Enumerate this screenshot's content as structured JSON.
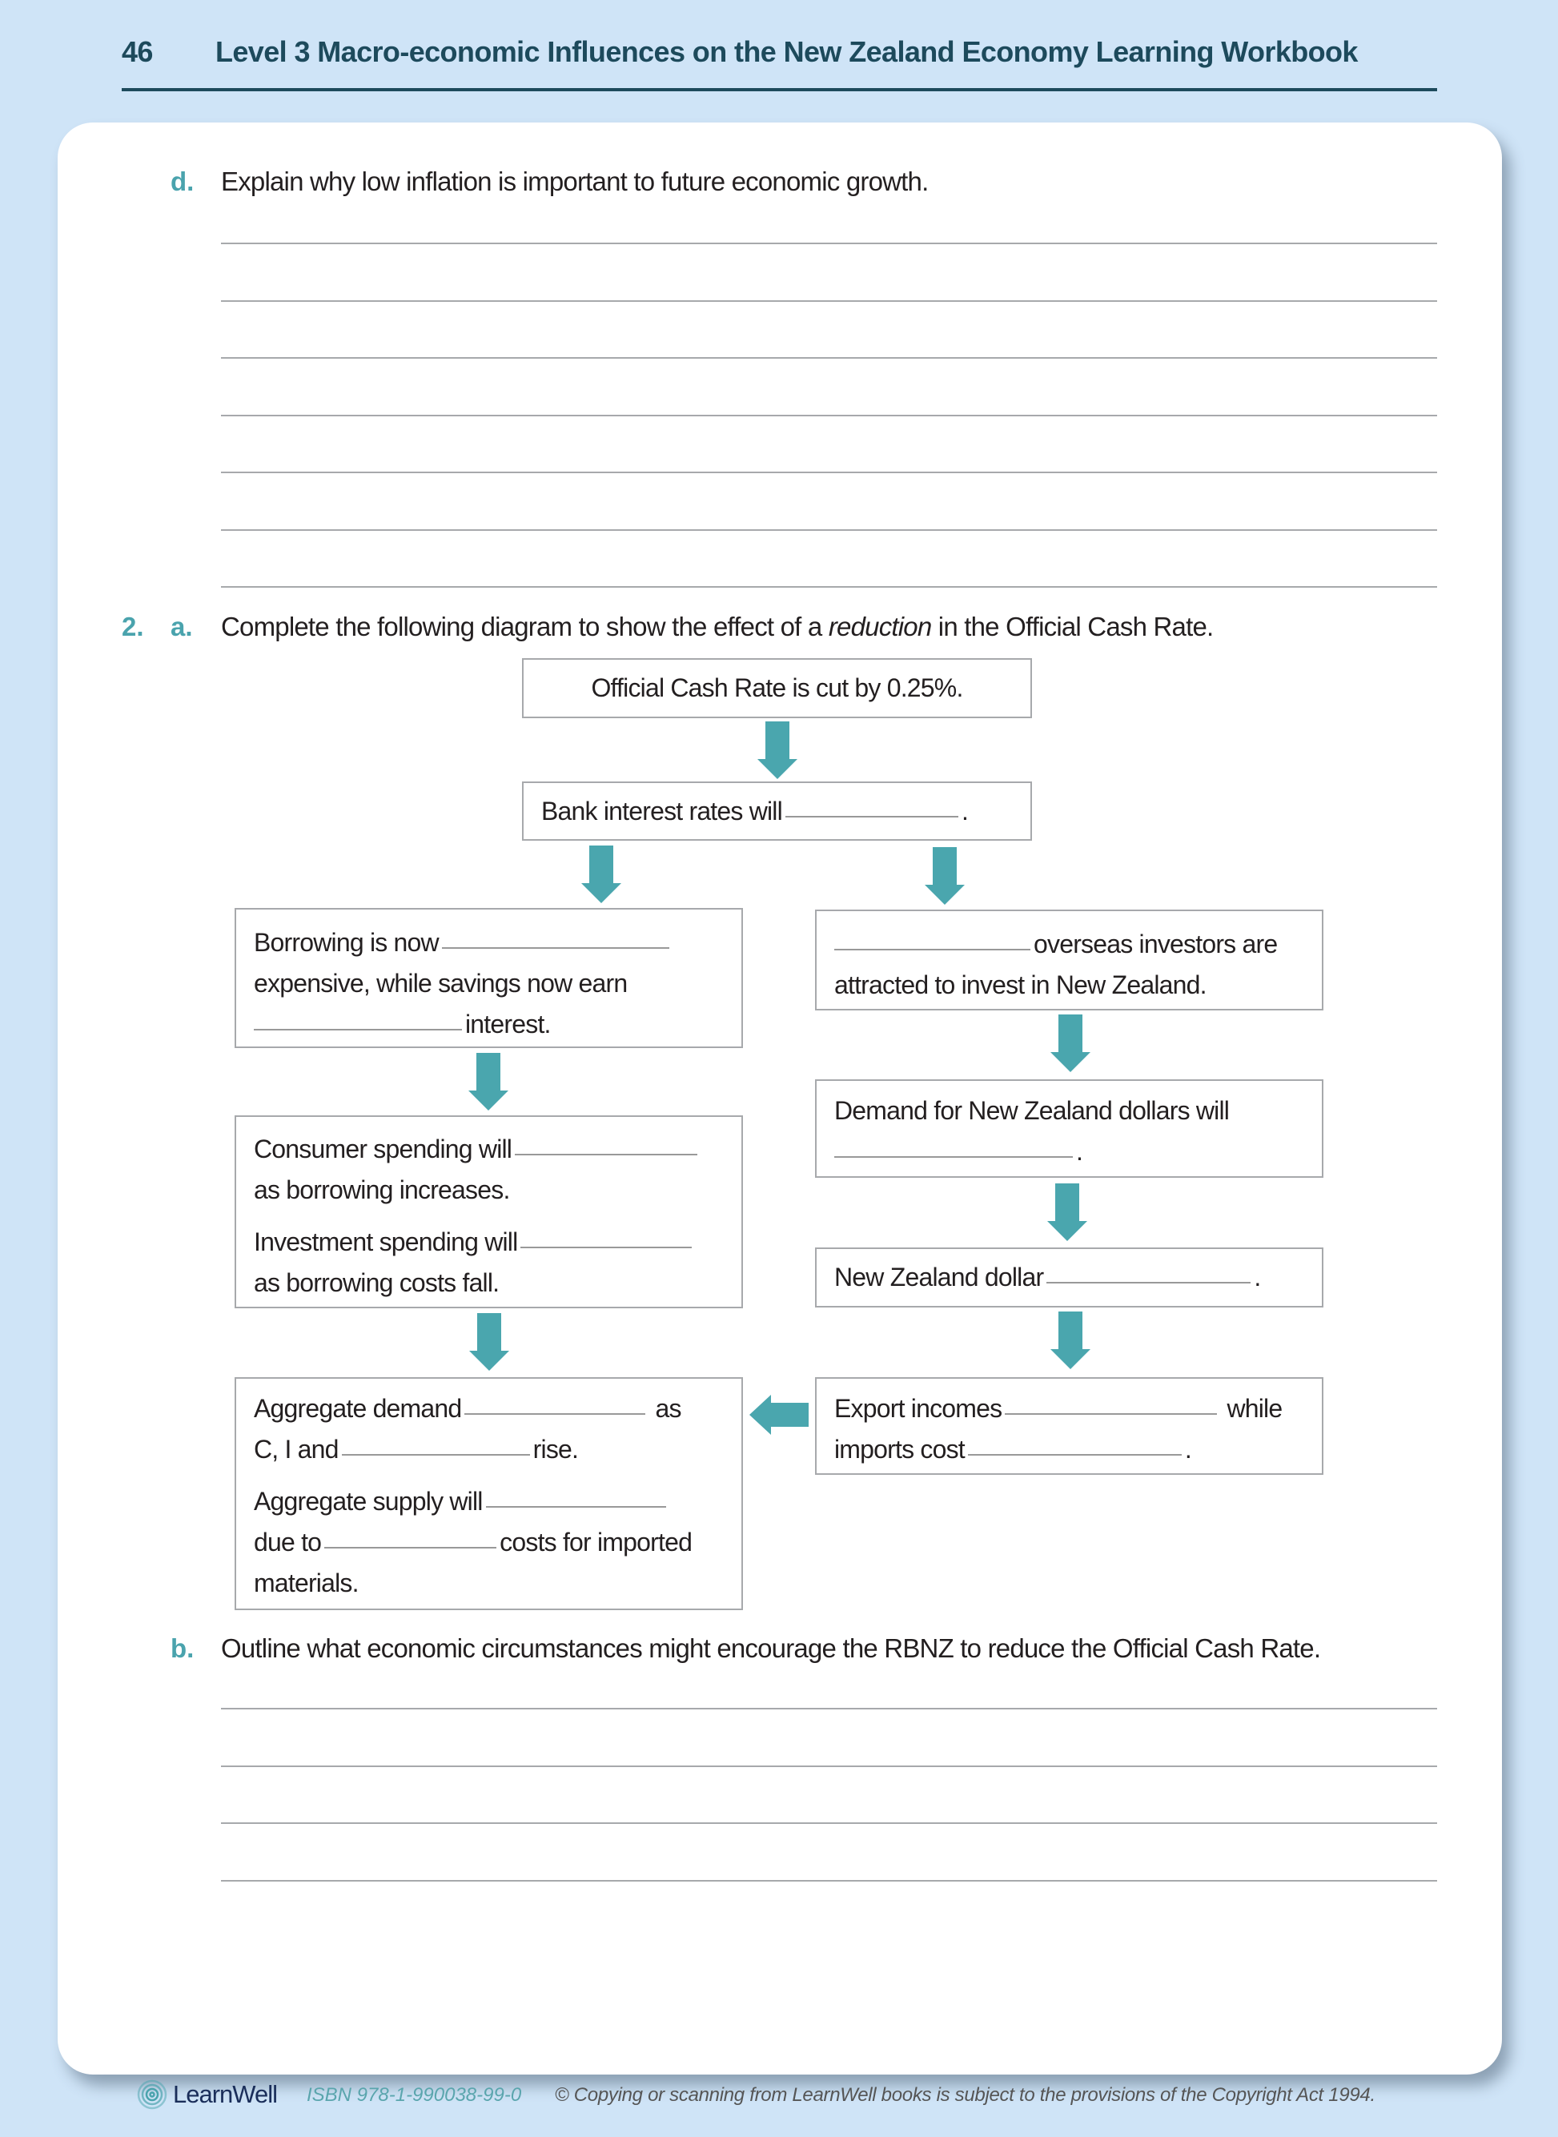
{
  "header": {
    "page_number": "46",
    "book_title": "Level 3 Macro-economic Influences on the New Zealand Economy Learning Workbook"
  },
  "question_1d": {
    "label": "d.",
    "text": "Explain why low inflation is important to future economic growth.",
    "answer_lines": 7
  },
  "question_2a": {
    "number": "2.",
    "label": "a.",
    "text_before": "Complete the following diagram to show the effect of a ",
    "text_italic": "reduction",
    "text_after": " in the Official Cash Rate."
  },
  "diagram": {
    "arrow_color": "#4aa6ae",
    "box1": "Official Cash Rate is cut by 0.25%.",
    "box2": {
      "a": "Bank interest rates will",
      "b": "."
    },
    "borrowing": {
      "a": "Borrowing is now",
      "b": "expensive, while savings now earn",
      "c": "interest."
    },
    "overseas": {
      "a": "overseas investors are",
      "b": "attracted to invest in New Zealand."
    },
    "spending": {
      "a": "Consumer spending will",
      "b": "as borrowing increases.",
      "c": "Investment spending will",
      "d": "as borrowing costs fall."
    },
    "demand_nzd": {
      "a": "Demand for New Zealand dollars will",
      "b": "."
    },
    "nzd": {
      "a": "New Zealand dollar",
      "b": "."
    },
    "aggregate": {
      "a": "Aggregate demand",
      "b": "as",
      "c": "C, I and",
      "d": "rise.",
      "e": "Aggregate supply will",
      "f": "due to",
      "g": "costs for imported",
      "h": "materials."
    },
    "exports": {
      "a": "Export incomes",
      "b": "while",
      "c": "imports cost",
      "d": "."
    }
  },
  "question_2b": {
    "label": "b.",
    "text": "Outline what economic circumstances might encourage the RBNZ to reduce the Official Cash Rate.",
    "answer_lines": 4
  },
  "footer": {
    "logo_text": "LearnWell",
    "isbn": "ISBN 978-1-990038-99-0",
    "copyright": "© Copying or scanning from LearnWell books is subject to the provisions of the Copyright Act 1994."
  },
  "colors": {
    "background": "#cfe4f7",
    "header": "#1d4a5c",
    "accent": "#4aa3ad"
  }
}
